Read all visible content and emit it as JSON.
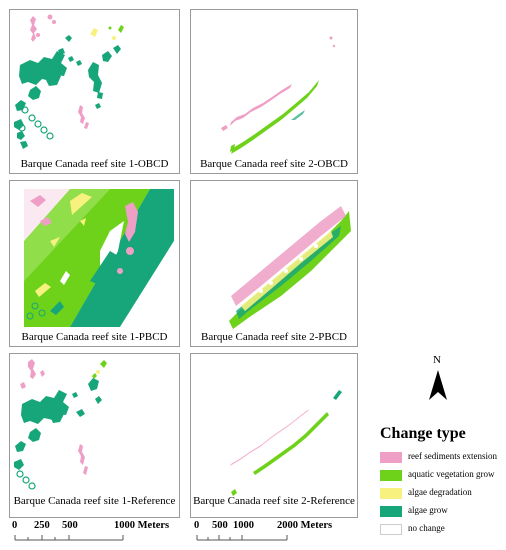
{
  "panels": [
    {
      "id": "site1-obcd",
      "caption": "Barque Canada reef site 1-OBCD"
    },
    {
      "id": "site2-obcd",
      "caption": "Barque Canada reef site 2-OBCD"
    },
    {
      "id": "site1-pbcd",
      "caption": "Barque Canada reef site 1-PBCD"
    },
    {
      "id": "site2-pbcd",
      "caption": "Barque Canada reef site 2-PBCD"
    },
    {
      "id": "site1-reference",
      "caption": "Barque Canada reef site 1-Reference"
    },
    {
      "id": "site2-reference",
      "caption": "Barque Canada reef site 2-Reference"
    }
  ],
  "scale_bars": [
    {
      "ticks": [
        "0",
        "250",
        "500"
      ],
      "end_label": "1000 Meters"
    },
    {
      "ticks": [
        "0",
        "500",
        "1000"
      ],
      "end_label": "2000 Meters"
    }
  ],
  "north_arrow": {
    "label": "N",
    "icon": "north-arrow-icon"
  },
  "legend": {
    "title": "Change type",
    "items": [
      {
        "label": "reef sediments extension",
        "color": "#ef9fc6"
      },
      {
        "label": "aquatic vegetation grow",
        "color": "#6fd21a"
      },
      {
        "label": "algae degradation",
        "color": "#f7f27f"
      },
      {
        "label": "algae grow",
        "color": "#17a57a"
      },
      {
        "label": "no change",
        "color": "#ffffff"
      }
    ]
  }
}
